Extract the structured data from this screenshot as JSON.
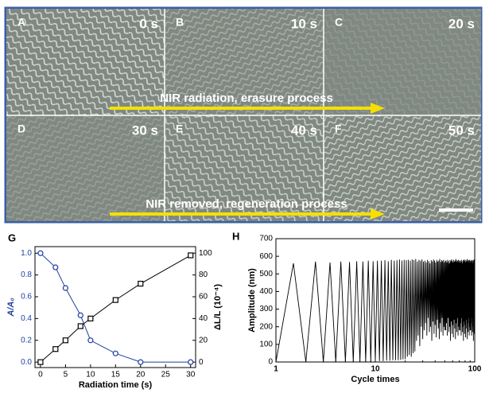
{
  "micrographs": {
    "panels": [
      {
        "label": "A",
        "time": "0 s"
      },
      {
        "label": "B",
        "time": "10 s"
      },
      {
        "label": "C",
        "time": "20 s"
      },
      {
        "label": "D",
        "time": "30 s"
      },
      {
        "label": "E",
        "time": "40 s"
      },
      {
        "label": "F",
        "time": "50 s"
      }
    ],
    "arrows": [
      "NIR radiation, erasure process",
      "NIR removed, regeneration process"
    ]
  },
  "chart_data": [
    {
      "type": "line",
      "panel_label": "G",
      "xlabel": "Radiation time (s)",
      "ylabel": "A/A₀",
      "y2label": "ΔL/L (10⁻⁴)",
      "x": [
        0,
        3,
        5,
        8,
        10,
        15,
        20,
        30
      ],
      "xlim": [
        -1.1,
        31
      ],
      "xticks": [
        0,
        5,
        10,
        15,
        20,
        25,
        30
      ],
      "ylim": [
        -0.05,
        1.06
      ],
      "yticks": [
        {
          "value": 0,
          "label": "0.0"
        },
        {
          "value": 0.2,
          "label": "0.2"
        },
        {
          "value": 0.4,
          "label": "0.4"
        },
        {
          "value": 0.6,
          "label": "0.6"
        },
        {
          "value": 0.8,
          "label": "0.8"
        },
        {
          "value": 1,
          "label": "1.0"
        }
      ],
      "y2lim": [
        -5,
        106
      ],
      "y2ticks": [
        0,
        20,
        40,
        60,
        80,
        100
      ],
      "ycolor": "#1f3fa0",
      "series": [
        {
          "color": "#1f3fa0",
          "marker": "circle",
          "values": [
            1.0,
            0.87,
            0.68,
            0.43,
            0.2,
            0.08,
            0.0,
            0.0
          ]
        },
        {
          "color": "#000000",
          "marker": "square",
          "axis": "y2",
          "values": [
            0,
            12,
            20,
            33,
            40,
            57,
            72,
            98
          ]
        }
      ]
    },
    {
      "type": "line",
      "panel_label": "H",
      "xlabel": "Cycle times",
      "ylabel": "Amplitude (nm)",
      "log_x": true,
      "xlim": [
        1,
        100
      ],
      "xticks": [
        1,
        10,
        100
      ],
      "ylim": [
        0,
        700
      ],
      "yticks": [
        0,
        100,
        200,
        300,
        400,
        500,
        600,
        700
      ],
      "x": [
        1,
        1.5,
        2,
        2.5,
        3,
        3.5,
        4,
        4.5,
        5,
        5.5,
        6,
        6.5,
        7,
        7.5,
        8,
        8.5,
        9,
        9.5,
        10,
        10.5,
        11,
        11.5,
        12,
        12.5,
        13,
        13.5,
        14,
        14.5,
        15,
        15.5,
        16,
        16.5,
        17,
        17.5,
        18,
        18.5,
        19,
        19.5,
        20,
        20.5,
        21,
        21.5,
        22,
        22.5,
        23,
        23.5,
        24,
        24.5,
        25,
        25.5,
        26,
        26.5,
        27,
        27.5,
        28,
        28.5,
        29,
        29.5,
        30,
        30.5,
        31,
        31.5,
        32,
        32.5,
        33,
        33.5,
        34,
        34.5,
        35,
        35.5,
        36,
        36.5,
        37,
        37.5,
        38,
        38.5,
        39,
        39.5,
        40,
        40.5,
        41,
        41.5,
        42,
        42.5,
        43,
        43.5,
        44,
        44.5,
        45,
        45.5,
        46,
        46.5,
        47,
        47.5,
        48,
        48.5,
        49,
        49.5,
        50,
        50.5,
        51,
        51.5,
        52,
        52.5,
        53,
        53.5,
        54,
        54.5,
        55,
        55.5,
        56,
        56.5,
        57,
        57.5,
        58,
        58.5,
        59,
        59.5,
        60,
        60.5,
        61,
        61.5,
        62,
        62.5,
        63,
        63.5,
        64,
        64.5,
        65,
        65.5,
        66,
        66.5,
        67,
        67.5,
        68,
        68.5,
        69,
        69.5,
        70,
        70.5,
        71,
        71.5,
        72,
        72.5,
        73,
        73.5,
        74,
        74.5,
        75,
        75.5,
        76,
        76.5,
        77,
        77.5,
        78,
        78.5,
        79,
        79.5,
        80,
        80.5,
        81,
        81.5,
        82,
        82.5,
        83,
        83.5,
        84,
        84.5,
        85,
        85.5,
        86,
        86.5,
        87,
        87.5,
        88,
        88.5,
        89,
        89.5,
        90,
        90.5,
        91,
        91.5,
        92,
        92.5,
        93,
        93.5,
        94,
        94.5,
        95,
        95.5,
        96,
        96.5,
        97,
        97.5,
        98,
        98.5,
        99,
        99.5,
        100
      ],
      "series": [
        {
          "color": "#000000",
          "values": [
            0,
            560,
            0,
            570,
            0,
            565,
            0,
            570,
            0,
            568,
            0,
            572,
            0,
            570,
            0,
            575,
            0,
            572,
            5,
            575,
            5,
            575,
            5,
            578,
            8,
            572,
            8,
            580,
            10,
            575,
            10,
            578,
            10,
            582,
            12,
            576,
            15,
            580,
            15,
            578,
            30,
            580,
            40,
            575,
            30,
            582,
            50,
            578,
            60,
            585,
            120,
            570,
            150,
            580,
            90,
            575,
            200,
            582,
            130,
            570,
            180,
            575,
            220,
            565,
            150,
            580,
            250,
            572,
            170,
            560,
            200,
            578,
            120,
            570,
            230,
            582,
            160,
            575,
            210,
            565,
            140,
            580,
            240,
            570,
            190,
            575,
            130,
            585,
            220,
            568,
            170,
            578,
            250,
            572,
            150,
            580,
            200,
            565,
            180,
            575,
            180,
            575,
            220,
            565,
            150,
            580,
            250,
            572,
            170,
            560,
            200,
            578,
            120,
            570,
            230,
            582,
            160,
            575,
            210,
            565,
            140,
            580,
            240,
            570,
            190,
            575,
            130,
            585,
            220,
            568,
            170,
            578,
            250,
            572,
            150,
            580,
            200,
            565,
            180,
            575,
            180,
            575,
            220,
            565,
            150,
            580,
            250,
            572,
            170,
            560,
            200,
            578,
            120,
            570,
            230,
            582,
            160,
            575,
            210,
            565,
            140,
            580,
            240,
            570,
            190,
            575,
            130,
            585,
            220,
            568,
            170,
            578,
            250,
            572,
            150,
            580,
            200,
            565,
            180,
            575,
            180,
            575,
            220,
            565,
            150,
            580,
            250,
            572,
            170,
            560,
            200,
            578,
            120,
            570,
            230,
            582,
            160,
            575,
            210
          ]
        }
      ]
    }
  ]
}
